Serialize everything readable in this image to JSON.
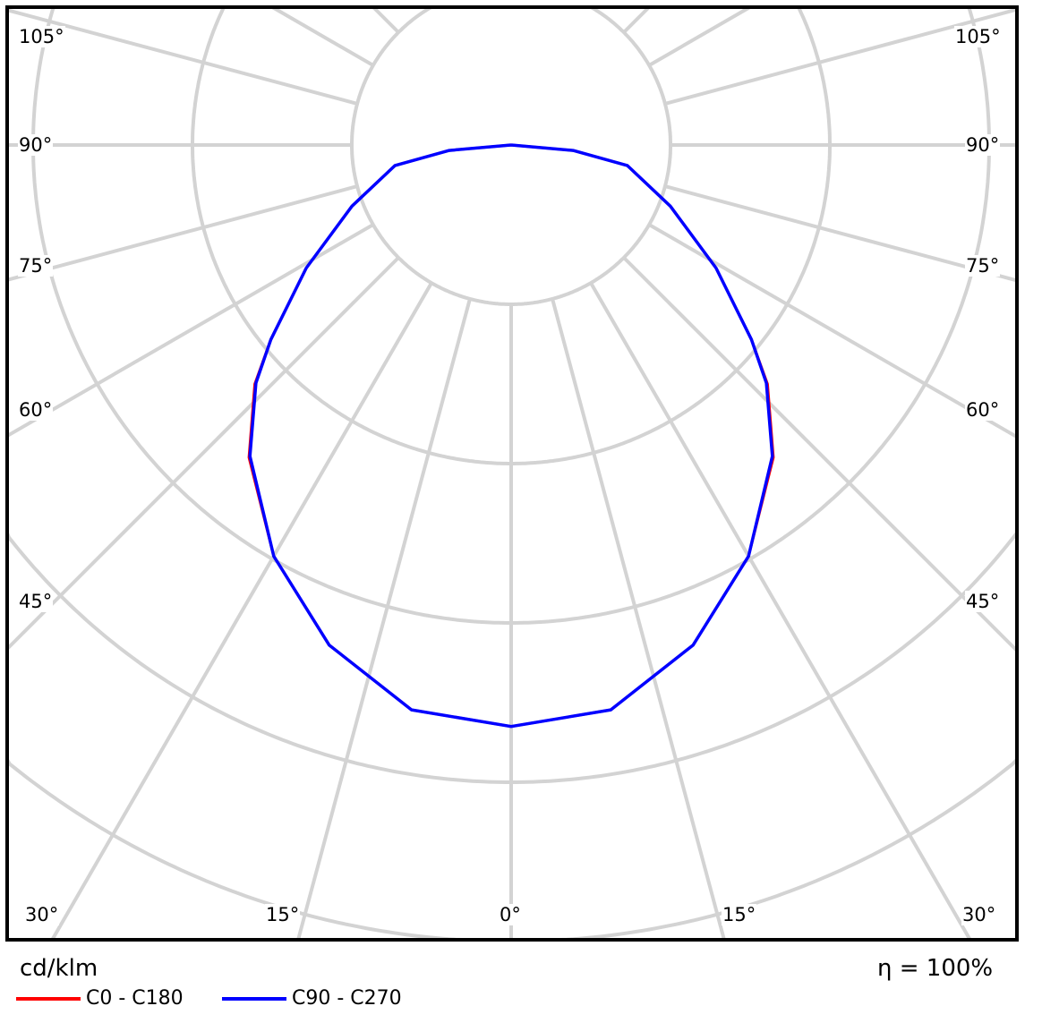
{
  "chart_data": {
    "type": "polar",
    "unit_label": "cd/klm",
    "efficiency_label": "η = 100%",
    "angle_labels_left": [
      "105°",
      "90°",
      "75°",
      "60°",
      "45°"
    ],
    "angle_labels_right": [
      "105°",
      "90°",
      "75°",
      "60°",
      "45°"
    ],
    "angle_labels_bottom": [
      "30°",
      "15°",
      "0°",
      "15°",
      "30°"
    ],
    "angle_zero": "down",
    "spoke_step_deg": 15,
    "rings": [
      1,
      2,
      3,
      4,
      5,
      6
    ],
    "grid_color": "#d3d3d3",
    "gamma_deg": [
      0,
      10,
      20,
      30,
      40,
      47,
      51,
      59,
      69,
      80,
      85,
      90
    ],
    "series": [
      {
        "name": "C0 - C180",
        "color": "#ff0000",
        "values": [
          3.65,
          3.6,
          3.34,
          2.98,
          2.56,
          2.2,
          1.94,
          1.5,
          1.07,
          0.74,
          0.39,
          0
        ]
      },
      {
        "name": "C90 - C270",
        "color": "#0000ff",
        "values": [
          3.65,
          3.6,
          3.34,
          2.98,
          2.55,
          2.19,
          1.94,
          1.5,
          1.07,
          0.74,
          0.39,
          0
        ]
      }
    ]
  }
}
